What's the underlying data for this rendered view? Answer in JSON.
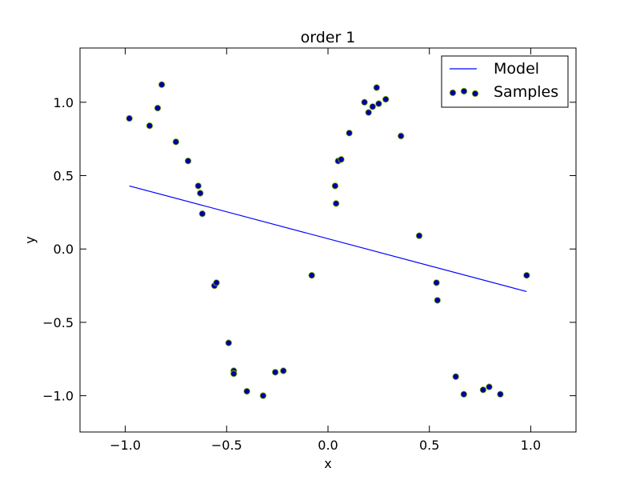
{
  "chart_data": {
    "type": "scatter",
    "title": "order 1",
    "xlabel": "x",
    "ylabel": "y",
    "xlim": [
      -1.2233,
      1.2233
    ],
    "ylim": [
      -1.2473,
      1.3697
    ],
    "xticks": [
      -1.0,
      -0.5,
      0.0,
      0.5,
      1.0
    ],
    "xtick_labels": [
      "−1.0",
      "−0.5",
      "0.0",
      "0.5",
      "1.0"
    ],
    "yticks": [
      -1.0,
      -0.5,
      0.0,
      0.5,
      1.0
    ],
    "ytick_labels": [
      "−1.0",
      "−0.5",
      "0.0",
      "0.5",
      "1.0"
    ],
    "grid": false,
    "legend_position": "top-right",
    "series": [
      {
        "name": "Model",
        "kind": "line",
        "color": "#0000ff",
        "x": [
          -0.98,
          0.98
        ],
        "y": [
          0.43,
          -0.29
        ]
      },
      {
        "name": "Samples",
        "kind": "scatter",
        "color": "#0000a0",
        "edge_color": "#8fbf00",
        "x": [
          -0.98,
          -0.88,
          -0.84,
          -0.82,
          -0.75,
          -0.69,
          -0.64,
          -0.63,
          -0.62,
          -0.56,
          -0.55,
          -0.49,
          -0.465,
          -0.465,
          -0.4,
          -0.32,
          -0.26,
          -0.22,
          -0.08,
          0.035,
          0.04,
          0.05,
          0.065,
          0.105,
          0.18,
          0.2,
          0.22,
          0.24,
          0.25,
          0.285,
          0.36,
          0.45,
          0.535,
          0.54,
          0.63,
          0.67,
          0.765,
          0.795,
          0.85,
          0.98
        ],
        "y": [
          0.89,
          0.84,
          0.96,
          1.12,
          0.73,
          0.6,
          0.43,
          0.38,
          0.24,
          -0.25,
          -0.23,
          -0.64,
          -0.83,
          -0.85,
          -0.97,
          -1.0,
          -0.84,
          -0.83,
          -0.18,
          0.43,
          0.31,
          0.6,
          0.61,
          0.79,
          1.0,
          0.93,
          0.97,
          1.1,
          0.99,
          1.02,
          0.77,
          0.09,
          -0.23,
          -0.35,
          -0.87,
          -0.99,
          -0.96,
          -0.94,
          -0.99,
          -0.18
        ]
      }
    ]
  }
}
